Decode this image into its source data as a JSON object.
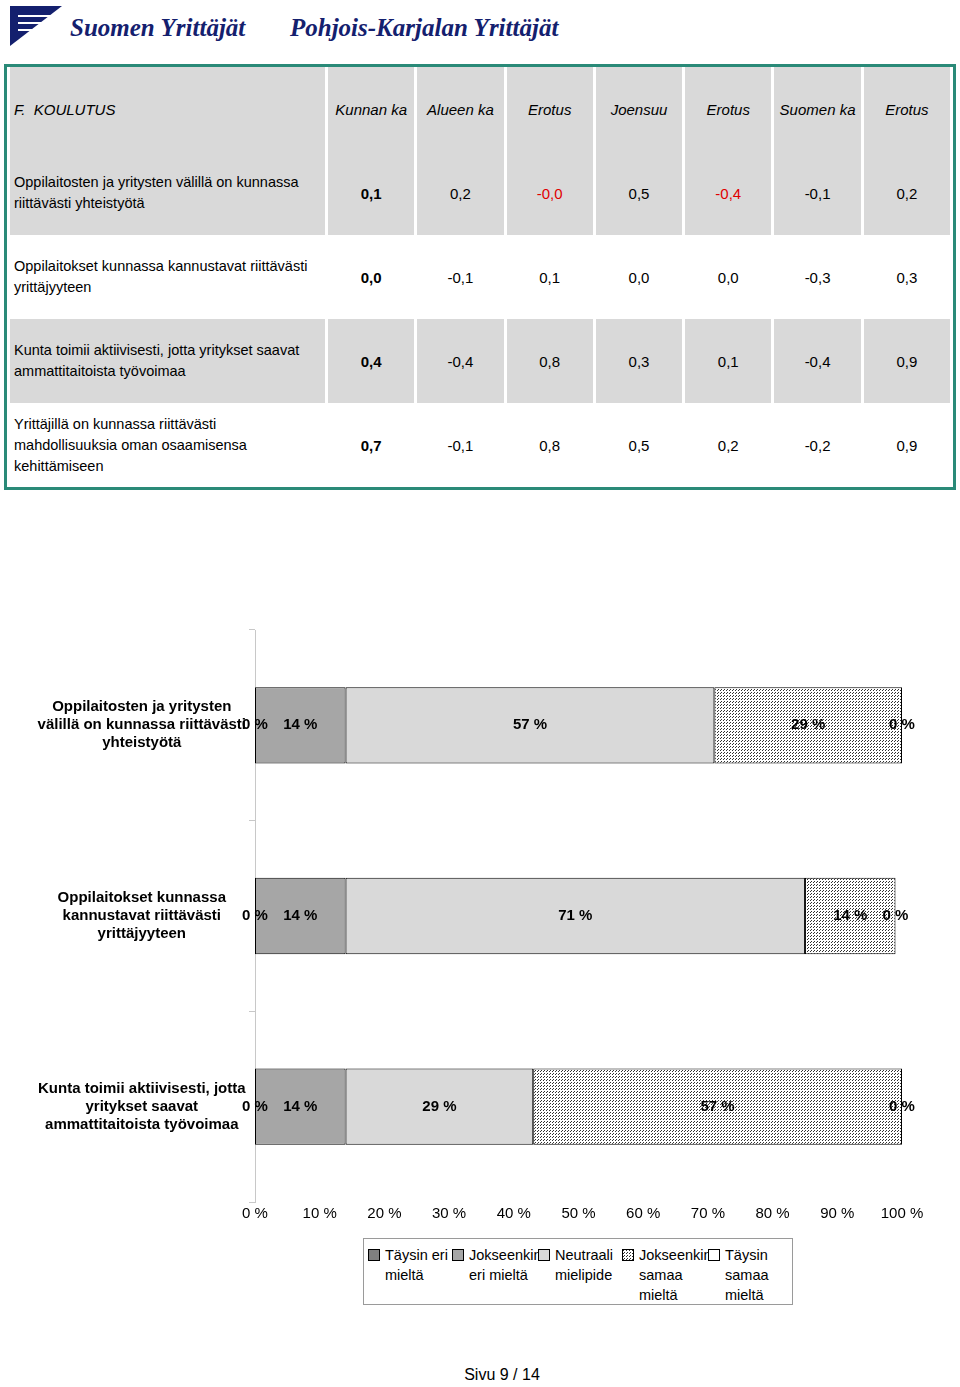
{
  "header": {
    "brand": "Suomen Yrittäjät",
    "region": "Pohjois-Karjalan Yrittäjät"
  },
  "table": {
    "columns": [
      "F.  KOULUTUS",
      "Kunnan ka",
      "Alueen ka",
      "Erotus",
      "Joensuu",
      "Erotus",
      "Suomen ka",
      "Erotus"
    ],
    "rows": [
      [
        "Oppilaitosten ja yritysten välillä on kunnassa riittävästi yhteistyötä",
        "0,1",
        "0,2",
        "-0,0",
        "0,5",
        "-0,4",
        "-0,1",
        "0,2"
      ],
      [
        "Oppilaitokset kunnassa kannustavat riittävästi yrittäjyyteen",
        "0,0",
        "-0,1",
        "0,1",
        "0,0",
        "0,0",
        "-0,3",
        "0,3"
      ],
      [
        "Kunta toimii aktiivisesti, jotta yritykset saavat ammattitaitoista työvoimaa",
        "0,4",
        "-0,4",
        "0,8",
        "0,3",
        "0,1",
        "-0,4",
        "0,9"
      ],
      [
        "Yrittäjillä on kunnassa riittävästi mahdollisuuksia oman osaamisensa kehittämiseen",
        "0,7",
        "-0,1",
        "0,8",
        "0,5",
        "0,2",
        "-0,2",
        "0,9"
      ]
    ]
  },
  "chart_data": {
    "type": "bar",
    "orientation": "horizontal",
    "stacked": true,
    "data_labels": true,
    "legend": "bottom",
    "grid": false,
    "categories": [
      "Oppilaitosten ja yritysten välillä on kunnassa riittävästi yhteistyötä",
      "Oppilaitokset kunnassa kannustavat riittävästi yrittäjyyteen",
      "Kunta toimii aktiivisesti, jotta yritykset saavat ammattitaitoista työvoimaa"
    ],
    "xlim": [
      0,
      100
    ],
    "xticks": [
      {
        "value": 0,
        "label": "0 %"
      },
      {
        "value": 10,
        "label": "10 %"
      },
      {
        "value": 20,
        "label": "20 %"
      },
      {
        "value": 30,
        "label": "30 %"
      },
      {
        "value": 40,
        "label": "40 %"
      },
      {
        "value": 50,
        "label": "50 %"
      },
      {
        "value": 60,
        "label": "60 %"
      },
      {
        "value": 70,
        "label": "70 %"
      },
      {
        "value": 80,
        "label": "80 %"
      },
      {
        "value": 90,
        "label": "90 %"
      },
      {
        "value": 100,
        "label": "100 %"
      }
    ],
    "series": [
      {
        "name": "Täysin eri mieltä",
        "color": "#7f7f7f",
        "values": [
          0,
          0,
          0
        ],
        "value_labels": [
          "0 %",
          "0 %",
          "0 %"
        ]
      },
      {
        "name": "Jokseenkin eri mieltä",
        "color": "#a6a6a6",
        "values": [
          14,
          14,
          14
        ],
        "value_labels": [
          "14 %",
          "14 %",
          "14 %"
        ]
      },
      {
        "name": "Neutraali mielipide",
        "color": "#d9d9d9",
        "values": [
          57,
          71,
          29
        ],
        "value_labels": [
          "57 %",
          "71 %",
          "29 %"
        ]
      },
      {
        "name": "Jokseenkin samaa mieltä",
        "color": "#303030",
        "values": [
          29,
          14,
          57
        ],
        "value_labels": [
          "29 %",
          "14 %",
          "57 %"
        ]
      },
      {
        "name": "Täysin samaa mieltä",
        "color": "#ffffff",
        "values": [
          0,
          0,
          0
        ],
        "value_labels": [
          "0 %",
          "0 %",
          "0 %"
        ]
      }
    ]
  },
  "footer": "Sivu 9 / 14"
}
